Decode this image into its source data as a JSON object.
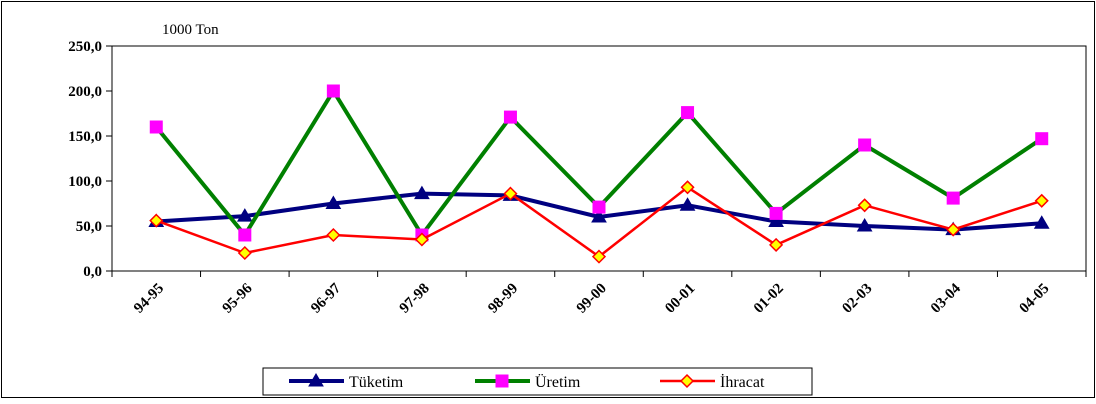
{
  "chart_data": {
    "type": "line",
    "unit_label": "1000 Ton",
    "categories": [
      "94-95",
      "95-96",
      "96-97",
      "97-98",
      "98-99",
      "99-00",
      "00-01",
      "01-02",
      "02-03",
      "03-04",
      "04-05"
    ],
    "ylim": [
      0,
      250
    ],
    "yticks": [
      "0,0",
      "50,0",
      "100,0",
      "150,0",
      "200,0",
      "250,0"
    ],
    "ytick_values": [
      0,
      50,
      100,
      150,
      200,
      250
    ],
    "grid": false,
    "legend_position": "bottom",
    "series": [
      {
        "name": "Tüketim",
        "color": "#000080",
        "marker": "triangle",
        "marker_color": "#000080",
        "values": [
          55,
          61,
          75,
          86,
          84,
          60,
          73,
          55,
          50,
          46,
          53
        ]
      },
      {
        "name": "Üretim",
        "color": "#008000",
        "marker": "square",
        "marker_color": "#FF00FF",
        "values": [
          160,
          40,
          200,
          40,
          171,
          71,
          176,
          64,
          140,
          81,
          147
        ]
      },
      {
        "name": "İhracat",
        "color": "#FF0000",
        "marker": "diamond",
        "marker_color": "#FFFF00",
        "values": [
          56,
          20,
          40,
          35,
          86,
          16,
          93,
          29,
          73,
          46,
          78
        ]
      }
    ]
  }
}
